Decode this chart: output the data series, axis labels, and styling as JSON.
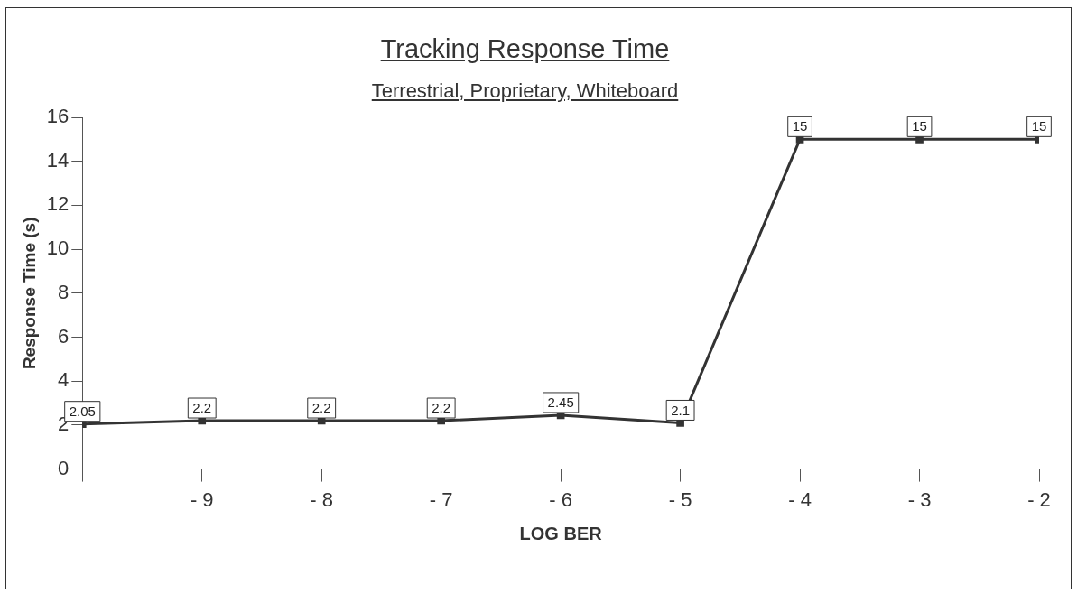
{
  "chart_data": {
    "type": "line",
    "title": "Tracking Response Time",
    "subtitle": "Terrestrial, Proprietary, Whiteboard",
    "xlabel": "LOG BER",
    "ylabel": "Response Time (s)",
    "x": [
      -10,
      -9,
      -8,
      -7,
      -6,
      -5,
      -4,
      -3,
      -2
    ],
    "series": [
      {
        "color": "#333333",
        "values": [
          2.05,
          2.2,
          2.2,
          2.2,
          2.45,
          2.1,
          15,
          15,
          15
        ]
      }
    ],
    "xlim": [
      -10,
      -2
    ],
    "xticks": [
      {
        "value": -10,
        "label": null
      },
      {
        "value": -9,
        "label": "- 9"
      },
      {
        "value": -8,
        "label": "- 8"
      },
      {
        "value": -7,
        "label": "- 7"
      },
      {
        "value": -6,
        "label": "- 6"
      },
      {
        "value": -5,
        "label": "- 5"
      },
      {
        "value": -4,
        "label": "- 4"
      },
      {
        "value": -3,
        "label": "- 3"
      },
      {
        "value": -2,
        "label": "- 2"
      }
    ],
    "ylim": [
      0,
      16
    ],
    "yticks": [
      0,
      2,
      4,
      6,
      8,
      10,
      12,
      14,
      16
    ],
    "data_labels": true,
    "legend": false,
    "marker": "square",
    "line_style": "solid"
  }
}
